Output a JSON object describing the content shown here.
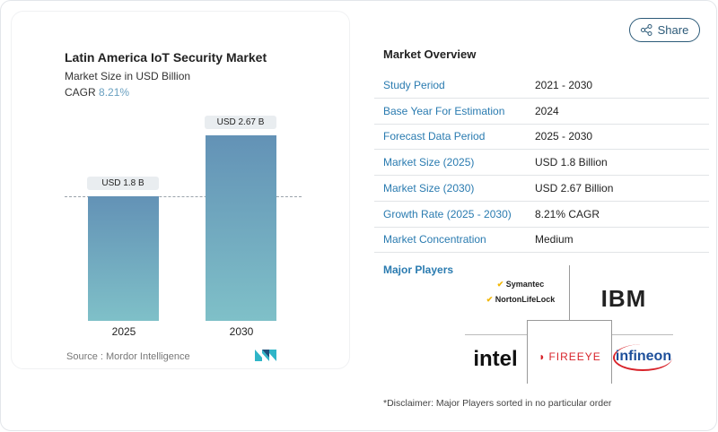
{
  "chart": {
    "title": "Latin America IoT Security Market",
    "subtitle": "Market Size in USD Billion",
    "cagr_label": "CAGR",
    "cagr_value": "8.21%",
    "source": "Source :  Mordor Intelligence"
  },
  "chart_data": {
    "type": "bar",
    "categories": [
      "2025",
      "2030"
    ],
    "values": [
      1.8,
      2.67
    ],
    "data_labels": [
      "USD 1.8 B",
      "USD 2.67 B"
    ],
    "title": "Latin America IoT Security Market",
    "ylabel": "Market Size in USD Billion",
    "colors": [
      "#6392b6",
      "#7fc0c8"
    ]
  },
  "share_label": "Share",
  "overview": {
    "title": "Market Overview",
    "rows": [
      {
        "k": "Study Period",
        "v": "2021 - 2030"
      },
      {
        "k": "Base Year For Estimation",
        "v": "2024"
      },
      {
        "k": "Forecast Data Period",
        "v": "2025 - 2030"
      },
      {
        "k": "Market Size (2025)",
        "v": "USD 1.8 Billion"
      },
      {
        "k": "Market Size (2030)",
        "v": "USD 2.67 Billion"
      },
      {
        "k": "Growth Rate (2025 - 2030)",
        "v": "8.21% CAGR"
      },
      {
        "k": "Market Concentration",
        "v": "Medium"
      }
    ]
  },
  "players": {
    "title": "Major Players",
    "logos": [
      "Symantec",
      "NortonLifeLock",
      "IBM",
      "intel",
      "FIREEYE",
      "infineon"
    ],
    "disclaimer": "*Disclaimer: Major Players sorted in no particular order"
  }
}
